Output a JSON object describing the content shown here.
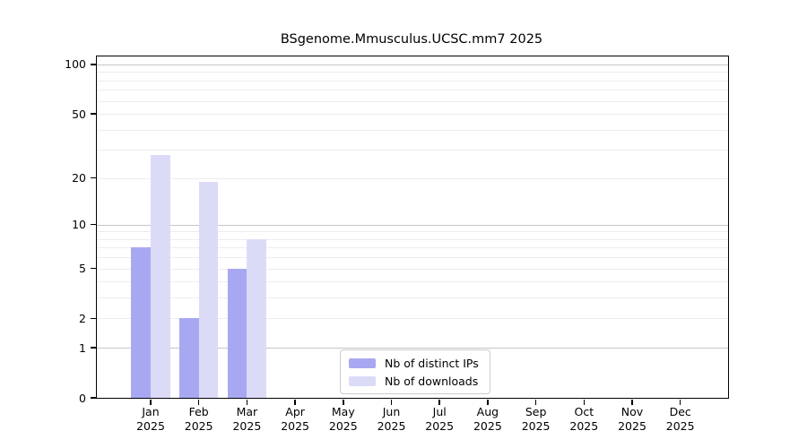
{
  "title": "BSgenome.Mmusculus.UCSC.mm7 2025",
  "colors": {
    "background": "#ffffff",
    "bar_distinct_ips": "#a8a8f2",
    "bar_downloads": "#dbdbf8",
    "grid_major": "#c6c6c6",
    "grid_minor": "#ededed",
    "axis": "#000000",
    "legend_border": "#cccccc",
    "text": "#000000"
  },
  "legend": {
    "position": "lower center",
    "items": [
      {
        "label": "Nb of distinct IPs",
        "color": "#a8a8f2"
      },
      {
        "label": "Nb of downloads",
        "color": "#dbdbf8"
      }
    ]
  },
  "chart_data": {
    "type": "bar",
    "title": "BSgenome.Mmusculus.UCSC.mm7 2025",
    "xlabel": "",
    "ylabel": "",
    "categories": [
      "Jan",
      "Feb",
      "Mar",
      "Apr",
      "May",
      "Jun",
      "Jul",
      "Aug",
      "Sep",
      "Oct",
      "Nov",
      "Dec"
    ],
    "year_label": "2025",
    "series": [
      {
        "name": "Nb of distinct IPs",
        "color": "#a8a8f2",
        "values": [
          7,
          2,
          5,
          0,
          0,
          0,
          0,
          0,
          0,
          0,
          0,
          0
        ]
      },
      {
        "name": "Nb of downloads",
        "color": "#dbdbf8",
        "values": [
          28,
          19,
          8,
          0,
          0,
          0,
          0,
          0,
          0,
          0,
          0,
          0
        ]
      }
    ],
    "yscale": "log1p",
    "y_ticks": [
      0,
      1,
      2,
      5,
      10,
      20,
      50,
      100
    ],
    "ylim": [
      0,
      112
    ],
    "grid": "horizontal",
    "grid_major_values": [
      1,
      10,
      100
    ],
    "grid_minor_values": [
      2,
      3,
      4,
      5,
      6,
      7,
      8,
      9,
      20,
      30,
      40,
      50,
      60,
      70,
      80,
      90
    ],
    "legend_position": "lower center"
  }
}
